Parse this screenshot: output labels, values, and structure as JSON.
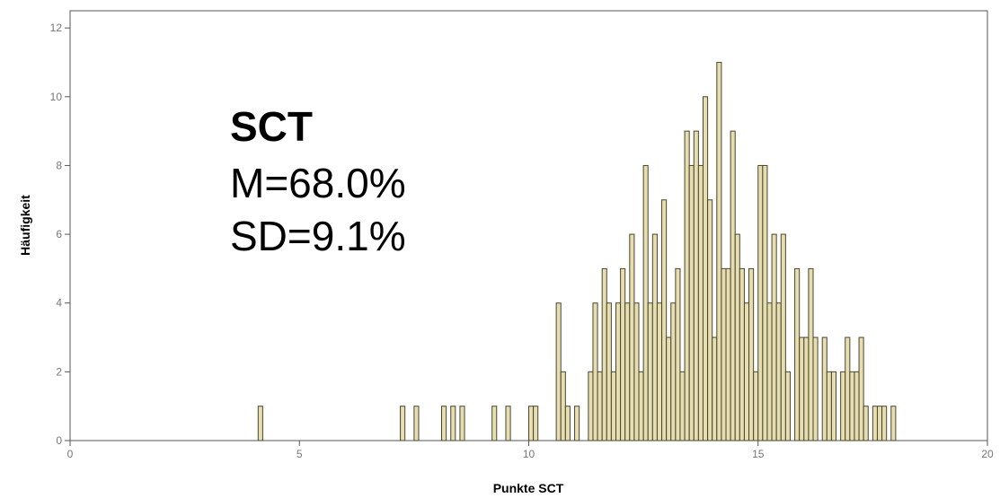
{
  "chart_data": {
    "type": "bar",
    "xlabel": "Punkte SCT",
    "ylabel": "Häufigkeit",
    "xlim": [
      0,
      20
    ],
    "ylim": [
      0,
      12.5
    ],
    "x_ticks": [
      0,
      5,
      10,
      15,
      20
    ],
    "y_ticks": [
      0,
      2,
      4,
      6,
      8,
      10,
      12
    ],
    "bin_width": 0.1,
    "grid": false,
    "colors": {
      "bar_fill": "#e6ddb0",
      "bar_stroke": "#4a4630",
      "axis": "#555555"
    },
    "annotation": {
      "title": "SCT",
      "lines": [
        "M=68.0%",
        "SD=9.1%"
      ]
    },
    "bins": [
      {
        "x": 4.15,
        "y": 1
      },
      {
        "x": 7.25,
        "y": 1
      },
      {
        "x": 7.55,
        "y": 1
      },
      {
        "x": 8.15,
        "y": 1
      },
      {
        "x": 8.35,
        "y": 1
      },
      {
        "x": 8.55,
        "y": 1
      },
      {
        "x": 9.25,
        "y": 1
      },
      {
        "x": 9.55,
        "y": 1
      },
      {
        "x": 10.05,
        "y": 1
      },
      {
        "x": 10.15,
        "y": 1
      },
      {
        "x": 10.65,
        "y": 4
      },
      {
        "x": 10.75,
        "y": 2
      },
      {
        "x": 10.85,
        "y": 1
      },
      {
        "x": 11.05,
        "y": 1
      },
      {
        "x": 11.35,
        "y": 2
      },
      {
        "x": 11.45,
        "y": 4
      },
      {
        "x": 11.55,
        "y": 2
      },
      {
        "x": 11.65,
        "y": 5
      },
      {
        "x": 11.75,
        "y": 4
      },
      {
        "x": 11.85,
        "y": 2
      },
      {
        "x": 11.95,
        "y": 4
      },
      {
        "x": 12.05,
        "y": 5
      },
      {
        "x": 12.15,
        "y": 4
      },
      {
        "x": 12.25,
        "y": 6
      },
      {
        "x": 12.35,
        "y": 4
      },
      {
        "x": 12.45,
        "y": 2
      },
      {
        "x": 12.55,
        "y": 8
      },
      {
        "x": 12.65,
        "y": 4
      },
      {
        "x": 12.75,
        "y": 6
      },
      {
        "x": 12.85,
        "y": 4
      },
      {
        "x": 12.95,
        "y": 7
      },
      {
        "x": 13.05,
        "y": 3
      },
      {
        "x": 13.15,
        "y": 4
      },
      {
        "x": 13.25,
        "y": 5
      },
      {
        "x": 13.35,
        "y": 2
      },
      {
        "x": 13.45,
        "y": 9
      },
      {
        "x": 13.55,
        "y": 8
      },
      {
        "x": 13.65,
        "y": 9
      },
      {
        "x": 13.75,
        "y": 8
      },
      {
        "x": 13.85,
        "y": 10
      },
      {
        "x": 13.95,
        "y": 7
      },
      {
        "x": 14.05,
        "y": 3
      },
      {
        "x": 14.15,
        "y": 11
      },
      {
        "x": 14.25,
        "y": 5
      },
      {
        "x": 14.35,
        "y": 5
      },
      {
        "x": 14.45,
        "y": 9
      },
      {
        "x": 14.55,
        "y": 6
      },
      {
        "x": 14.65,
        "y": 5
      },
      {
        "x": 14.75,
        "y": 4
      },
      {
        "x": 14.85,
        "y": 5
      },
      {
        "x": 14.95,
        "y": 2
      },
      {
        "x": 15.05,
        "y": 8
      },
      {
        "x": 15.15,
        "y": 8
      },
      {
        "x": 15.25,
        "y": 4
      },
      {
        "x": 15.35,
        "y": 6
      },
      {
        "x": 15.45,
        "y": 4
      },
      {
        "x": 15.55,
        "y": 6
      },
      {
        "x": 15.65,
        "y": 2
      },
      {
        "x": 15.85,
        "y": 5
      },
      {
        "x": 15.95,
        "y": 3
      },
      {
        "x": 16.05,
        "y": 3
      },
      {
        "x": 16.15,
        "y": 5
      },
      {
        "x": 16.25,
        "y": 3
      },
      {
        "x": 16.45,
        "y": 3
      },
      {
        "x": 16.55,
        "y": 2
      },
      {
        "x": 16.65,
        "y": 2
      },
      {
        "x": 16.85,
        "y": 2
      },
      {
        "x": 16.95,
        "y": 3
      },
      {
        "x": 17.05,
        "y": 2
      },
      {
        "x": 17.15,
        "y": 2
      },
      {
        "x": 17.25,
        "y": 3
      },
      {
        "x": 17.35,
        "y": 1
      },
      {
        "x": 17.55,
        "y": 1
      },
      {
        "x": 17.65,
        "y": 1
      },
      {
        "x": 17.75,
        "y": 1
      },
      {
        "x": 17.95,
        "y": 1
      }
    ]
  }
}
